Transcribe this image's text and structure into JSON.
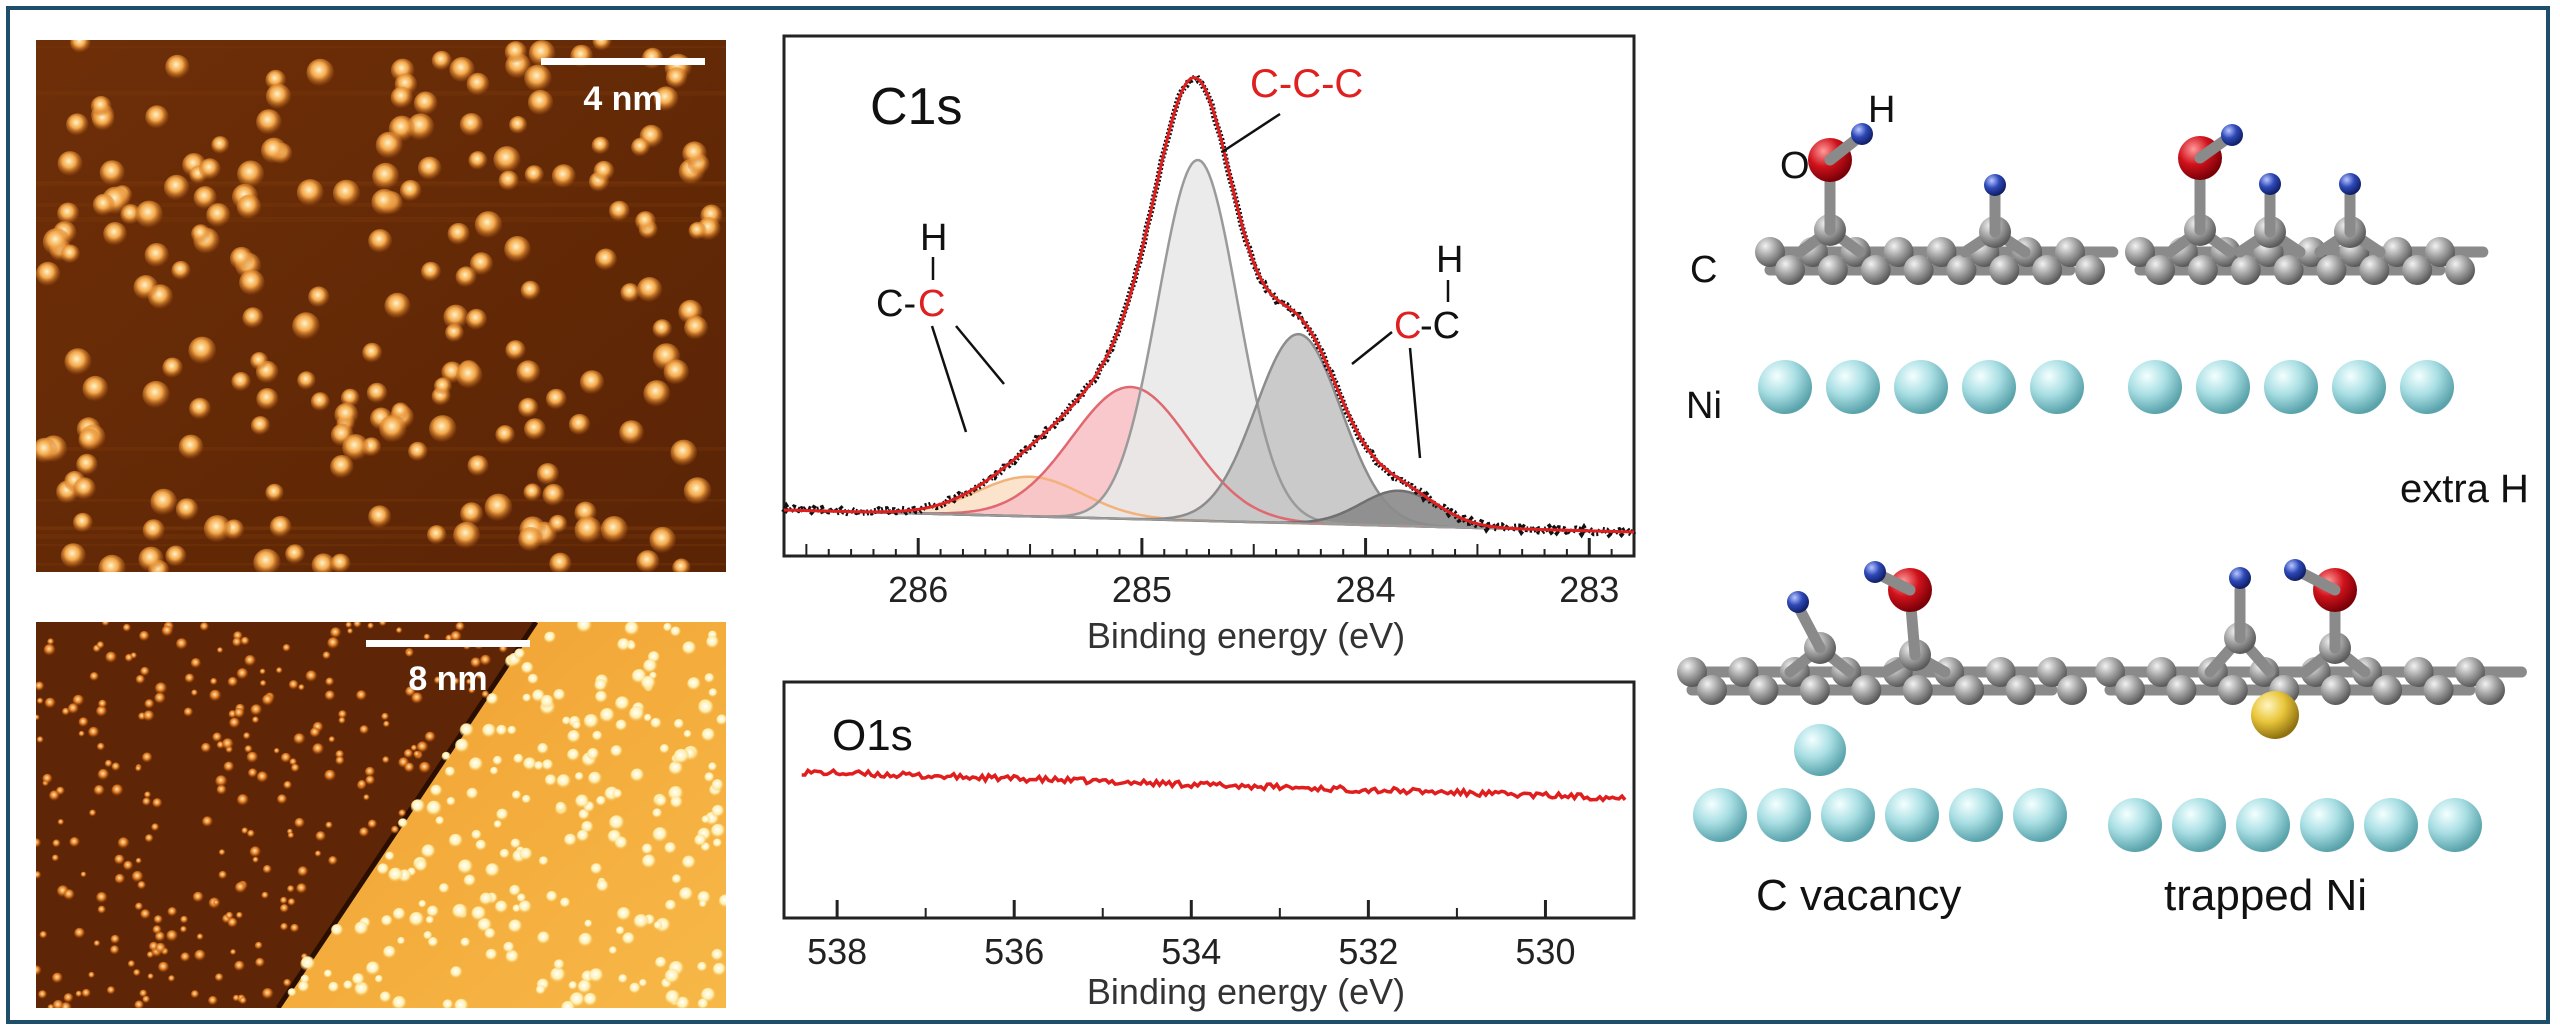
{
  "stm_top": {
    "scale_label": "4 nm"
  },
  "stm_bottom": {
    "scale_label": "8 nm"
  },
  "chart_data": [
    {
      "type": "line",
      "title": "C1s",
      "xlabel": "Binding energy (eV)",
      "xlim": [
        286.6,
        282.8
      ],
      "x_ticks": [
        286,
        285,
        284,
        283
      ],
      "x_reversed": true,
      "peak_labels": {
        "ccc": "C-C-C",
        "ch_left_h": "H",
        "ch_left_c1": "C-",
        "ch_left_c2": "C",
        "ch_right_h": "H",
        "ch_right_c1": "C",
        "ch_right_c2": "-C"
      },
      "components": [
        {
          "center": 285.5,
          "fwhm": 0.55,
          "amplitude": 0.09,
          "color": "#f2b27a",
          "fill": "#fbe0c6"
        },
        {
          "center": 285.05,
          "fwhm": 0.62,
          "amplitude": 0.3,
          "color": "#e06870",
          "fill": "#f7c2c6"
        },
        {
          "center": 284.75,
          "fwhm": 0.42,
          "amplitude": 0.82,
          "color": "#9a9a9a",
          "fill": "#e9e9e9"
        },
        {
          "center": 284.3,
          "fwhm": 0.45,
          "amplitude": 0.43,
          "color": "#8c8c8c",
          "fill": "#c4c4c4"
        },
        {
          "center": 283.85,
          "fwhm": 0.4,
          "amplitude": 0.08,
          "color": "#707070",
          "fill": "#8a8a8a"
        }
      ],
      "background": {
        "low_be": 282.8,
        "low_value": 0.0,
        "high_be": 286.6,
        "high_value": 0.05
      },
      "series": [
        {
          "name": "data",
          "color": "#111111"
        },
        {
          "name": "fit",
          "color": "#e02020"
        }
      ]
    },
    {
      "type": "line",
      "title": "O1s",
      "xlabel": "Binding energy (eV)",
      "xlim": [
        538.6,
        529.0
      ],
      "x_ticks": [
        538,
        536,
        534,
        532,
        530
      ],
      "x_reversed": true,
      "series": [
        {
          "name": "data",
          "color": "#e01e1e",
          "start_value": 0.68,
          "end_value": 0.55
        }
      ]
    }
  ],
  "models": {
    "atom_labels": {
      "o": "O",
      "h": "H",
      "c": "C",
      "ni": "Ni"
    },
    "captions": {
      "extra_h": "extra H",
      "c_vacancy": "C vacancy",
      "trapped_ni": "trapped Ni"
    },
    "colors": {
      "carbon": "#9b9b9b",
      "oxygen": "#d0121b",
      "hydrogen": "#2e49b8",
      "nickel": "#a9dfe4",
      "trapped_ni": "#e9c53a"
    }
  }
}
